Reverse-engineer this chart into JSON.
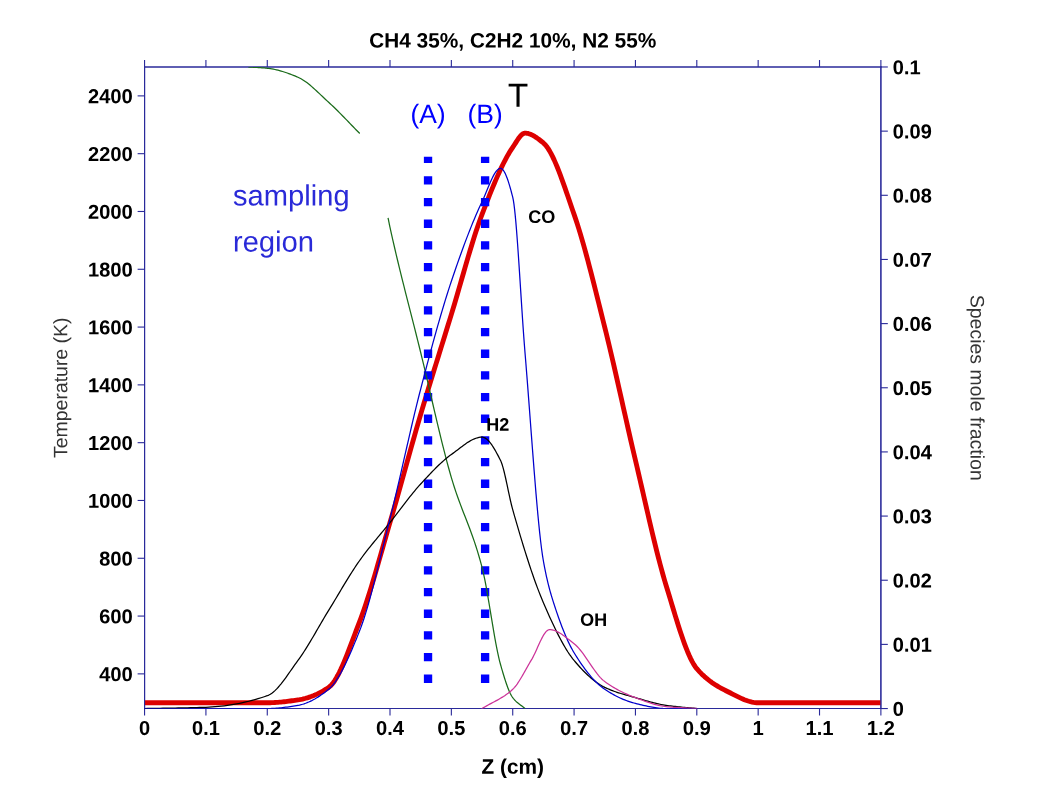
{
  "chart_data": {
    "type": "line",
    "title": "CH4 35%, C2H2 10%, N2 55%",
    "xlabel": "Z (cm)",
    "ylabel": "Temperature (K)",
    "y2label": "Species mole fraction",
    "xlim": [
      0,
      1.2
    ],
    "xticks": [
      0,
      0.1,
      0.2,
      0.3,
      0.4,
      0.5,
      0.6,
      0.7,
      0.8,
      0.9,
      1,
      1.1,
      1.2
    ],
    "ylim": [
      280,
      2500
    ],
    "yticks": [
      400,
      600,
      800,
      1000,
      1200,
      1400,
      1600,
      1800,
      2000,
      2200,
      2400
    ],
    "y2lim": [
      0,
      0.1
    ],
    "y2ticks": [
      0,
      0.01,
      0.02,
      0.03,
      0.04,
      0.05,
      0.06,
      0.07,
      0.08,
      0.09,
      0.1
    ],
    "grid": false,
    "marker": "none",
    "line_style": "solid",
    "series": [
      {
        "color": "#1a6b1a",
        "axis": "y2",
        "x": [
          0.17,
          0.2,
          0.25,
          0.3,
          0.35,
          0.37,
          0.397,
          0.4,
          0.45,
          0.5,
          0.55,
          0.58,
          0.6,
          0.62
        ],
        "values": [
          0.1,
          0.0998,
          0.0984,
          0.0945,
          0.0897,
          null,
          0.0764,
          0.075,
          0.0555,
          0.036,
          0.022,
          0.0069,
          0.0017,
          0
        ]
      },
      {
        "name": "H2",
        "color": "#000000",
        "axis": "y2",
        "x": [
          0,
          0.1,
          0.2,
          0.25,
          0.3,
          0.35,
          0.4,
          0.45,
          0.5,
          0.55,
          0.58,
          0.6,
          0.65,
          0.7,
          0.75,
          0.8,
          0.85,
          0.9
        ],
        "values": [
          0,
          0.0002,
          0.002,
          0.0075,
          0.0153,
          0.023,
          0.029,
          0.035,
          0.0396,
          0.0423,
          0.0387,
          0.031,
          0.0165,
          0.0075,
          0.0033,
          0.0017,
          0.0005,
          0
        ]
      },
      {
        "name": "CO",
        "color": "#0000cc",
        "axis": "y2",
        "x": [
          0,
          0.2,
          0.25,
          0.3,
          0.35,
          0.4,
          0.45,
          0.5,
          0.55,
          0.58,
          0.6,
          0.62,
          0.65,
          0.67,
          0.7,
          0.75,
          0.8,
          0.85,
          0.9
        ],
        "values": [
          0,
          0,
          0.0005,
          0.003,
          0.012,
          0.0296,
          0.0498,
          0.0666,
          0.079,
          0.0842,
          0.0797,
          0.0555,
          0.023,
          0.0155,
          0.0087,
          0.003,
          0.0008,
          0,
          0
        ]
      },
      {
        "name": "OH",
        "color": "#cc3399",
        "axis": "y2",
        "x": [
          0.55,
          0.6,
          0.63,
          0.66,
          0.7,
          0.75,
          0.8,
          0.85,
          0.9
        ],
        "values": [
          0,
          0.003,
          0.0075,
          0.0123,
          0.0101,
          0.0042,
          0.0017,
          0.0003,
          0
        ]
      },
      {
        "name": "T",
        "color": "#dd0000",
        "axis": "y",
        "x": [
          0,
          0.1,
          0.2,
          0.25,
          0.3,
          0.35,
          0.4,
          0.45,
          0.5,
          0.55,
          0.6,
          0.62,
          0.65,
          0.7,
          0.75,
          0.8,
          0.85,
          0.9,
          0.95,
          1.0,
          1.1,
          1.2
        ],
        "values": [
          300,
          300,
          300,
          310,
          353,
          578,
          924,
          1298,
          1644,
          1990,
          2222,
          2271,
          2237,
          1990,
          1599,
          1139,
          706,
          418,
          339,
          300,
          300,
          300
        ]
      }
    ],
    "ref_lines": [
      {
        "axis": "x",
        "value": 0.462,
        "label": "(A)",
        "color": "#0000ff",
        "line_style": "dotted"
      },
      {
        "axis": "x",
        "value": 0.555,
        "label": "(B)",
        "color": "#0000ff",
        "line_style": "dotted"
      }
    ],
    "annotations": [
      "sampling\nregion"
    ]
  }
}
